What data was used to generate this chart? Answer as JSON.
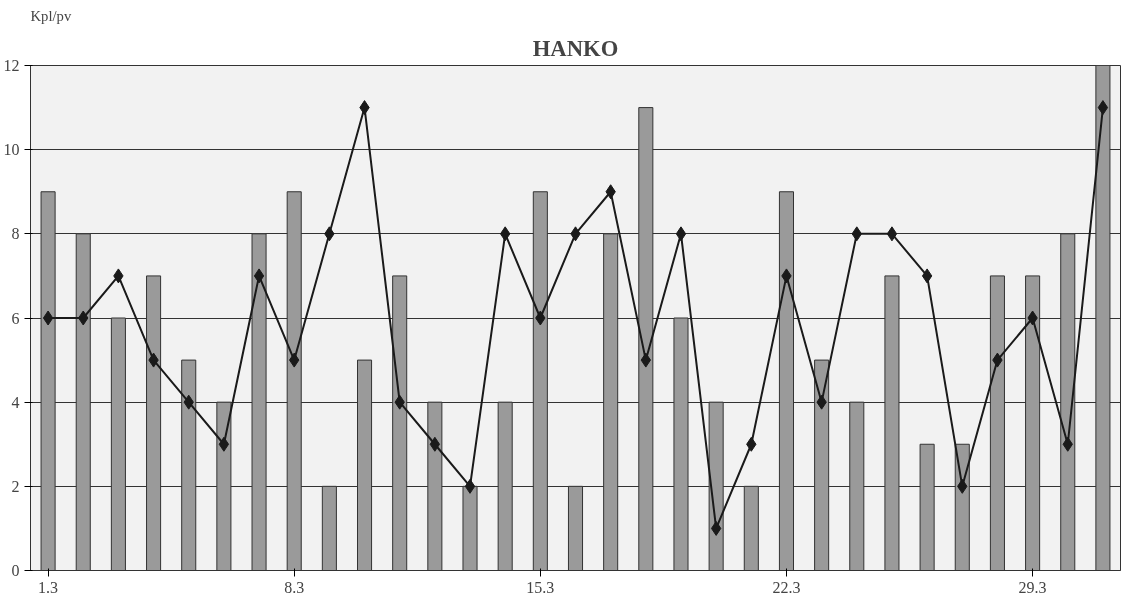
{
  "chart_data": {
    "type": "bar",
    "title": "HANKO",
    "ylabel": "Kpl/pv",
    "categories": [
      "1.3",
      null,
      null,
      null,
      null,
      null,
      null,
      "8.3",
      null,
      null,
      null,
      null,
      null,
      null,
      "15.3",
      null,
      null,
      null,
      null,
      null,
      null,
      "22.3",
      null,
      null,
      null,
      null,
      null,
      null,
      "29.3",
      null,
      null
    ],
    "series": [
      {
        "color": "#9a9a9a",
        "values": [
          9,
          8,
          6,
          7,
          5,
          4,
          8,
          9,
          2,
          5,
          7,
          4,
          2,
          4,
          9,
          2,
          8,
          11,
          6,
          4,
          2,
          9,
          5,
          4,
          7,
          3,
          3,
          7,
          7,
          8,
          12
        ]
      },
      {
        "type": "line",
        "color": "#1a1a1a",
        "marker": "diamond",
        "line_style": "solid",
        "values": [
          6,
          6,
          7,
          5,
          4,
          3,
          7,
          5,
          8,
          11,
          4,
          3,
          2,
          8,
          6,
          8,
          9,
          5,
          8,
          1,
          3,
          7,
          4,
          8,
          8,
          7,
          2,
          5,
          6,
          3,
          11
        ]
      }
    ],
    "ylim": [
      0,
      12
    ],
    "yticks": [
      0,
      2,
      4,
      6,
      8,
      10,
      12
    ],
    "grid": "y"
  }
}
